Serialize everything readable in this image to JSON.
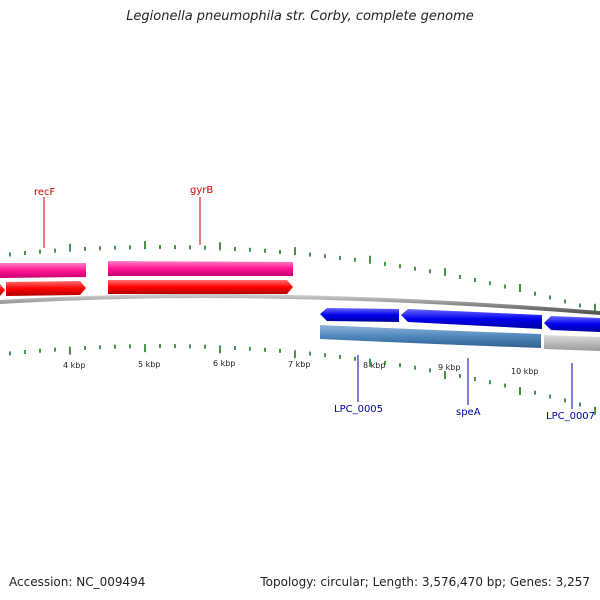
{
  "title": "Legionella pneumophila str. Corby, complete genome",
  "footer": {
    "accession": "Accession: NC_009494",
    "summary": "Topology: circular; Length: 3,576,470 bp; Genes: 3,257"
  },
  "colors": {
    "label_top": "#cc0000",
    "label_bottom": "#0000aa",
    "tick": "#1a7a1a",
    "backbone": "#7a7a7a"
  },
  "ticks": [
    "4 kbp",
    "5 kbp",
    "6 kbp",
    "7 kbp",
    "8 kbp",
    "9 kbp",
    "10 kbp"
  ],
  "genes": [
    {
      "label": "recF"
    },
    {
      "label": "gyrB"
    },
    {
      "label": "LPC_0005"
    },
    {
      "label": "speA"
    },
    {
      "label": "LPC_0007"
    }
  ]
}
